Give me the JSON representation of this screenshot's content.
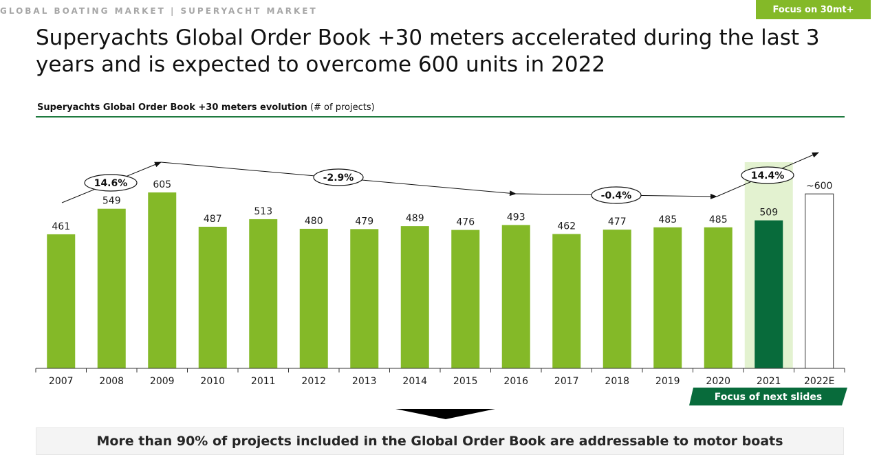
{
  "header": {
    "breadcrumb": "GLOBAL BOATING MARKET | SUPERYACHT MARKET",
    "focus_badge": "Focus on 30mt+",
    "title": "Superyachts Global Order Book +30 meters accelerated during the last 3 years and is expected to overcome 600 units in 2022"
  },
  "chart_data": {
    "type": "bar",
    "title": "Superyachts Global Order Book +30 meters evolution",
    "title_unit": "(# of projects)",
    "categories": [
      "2007",
      "2008",
      "2009",
      "2010",
      "2011",
      "2012",
      "2013",
      "2014",
      "2015",
      "2016",
      "2017",
      "2018",
      "2019",
      "2020",
      "2021",
      "2022E"
    ],
    "values": [
      461,
      549,
      605,
      487,
      513,
      480,
      479,
      489,
      476,
      493,
      462,
      477,
      485,
      485,
      509,
      600
    ],
    "value_labels": [
      "461",
      "549",
      "605",
      "487",
      "513",
      "480",
      "479",
      "489",
      "476",
      "493",
      "462",
      "477",
      "485",
      "485",
      "509",
      "~600"
    ],
    "highlight_category": "2021",
    "estimate_category": "2022E",
    "trend_labels": [
      "14.6%",
      "-2.9%",
      "-0.4%",
      "14.4%"
    ],
    "grid": false,
    "colors": {
      "bar": "#84b928",
      "bar_highlight": "#086b3b",
      "highlight_band": "#e3f2d0",
      "estimate_fill": "#ffffff",
      "estimate_stroke": "#333333"
    }
  },
  "focus_next": "Focus of next slides",
  "footer_message": "More than 90% of projects included in the Global Order Book are addressable to motor boats"
}
